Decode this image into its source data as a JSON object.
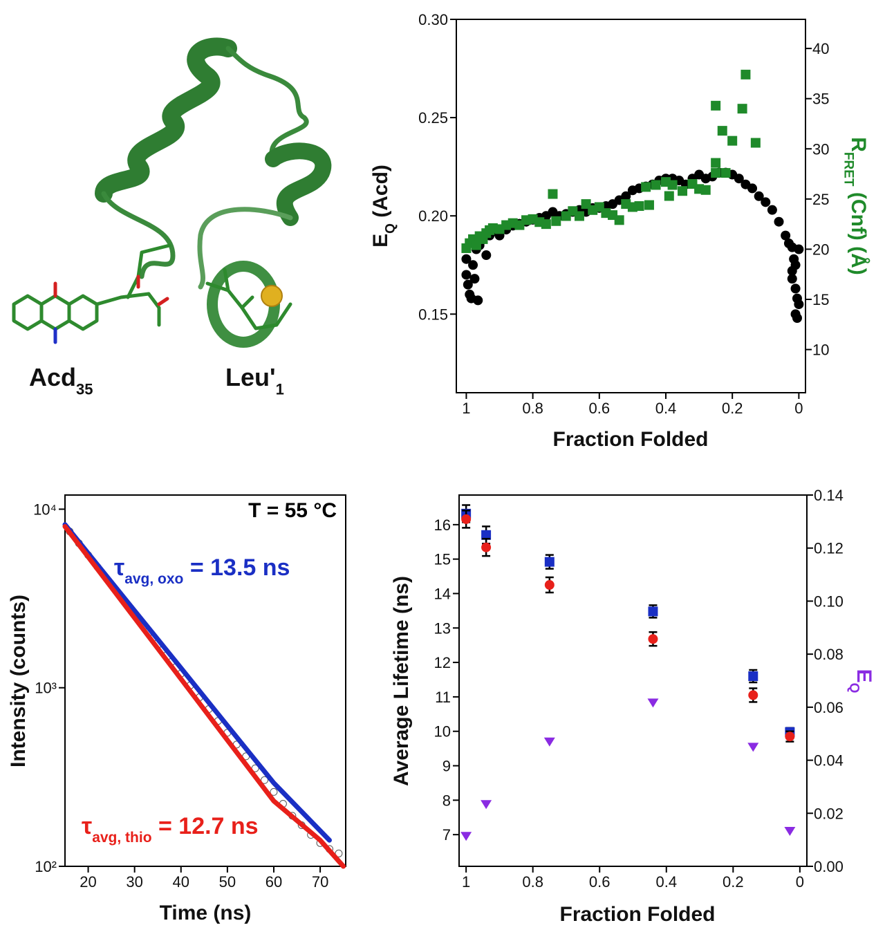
{
  "structure": {
    "labels": [
      [
        "Acd",
        {
          "sub": "35"
        }
      ],
      [
        "Leu'",
        {
          "sub": "1"
        }
      ]
    ]
  },
  "chart_data": [
    {
      "type": "scatter",
      "xlabel": [
        "Fraction Folded"
      ],
      "ylabel": [
        "E",
        {
          "sub": "Q"
        },
        " (Acd)"
      ],
      "y2label": [
        "R",
        {
          "sub": "FRET"
        },
        " (Cnf) (Å)"
      ],
      "y2label_color": "#1f8a2a",
      "xlim": [
        1.03,
        -0.02
      ],
      "xticks": [
        1,
        0.8,
        0.6,
        0.4,
        0.2,
        0
      ],
      "ylim": [
        0.11,
        0.3
      ],
      "yticks": [
        0.15,
        {
          "value": 0.2,
          "label": "0.20"
        },
        0.25,
        {
          "value": 0.3,
          "label": "0.30"
        }
      ],
      "y2lim": [
        5.7,
        42.9
      ],
      "y2ticks": [
        10,
        15,
        20,
        25,
        30,
        35,
        40
      ],
      "series": [
        {
          "color": "#000000",
          "marker": "circle",
          "x": [
            1.0,
            1.0,
            0.995,
            0.99,
            0.985,
            0.98,
            0.975,
            0.97,
            0.965,
            0.96,
            0.95,
            0.94,
            0.93,
            0.92,
            0.9,
            0.88,
            0.86,
            0.84,
            0.82,
            0.8,
            0.78,
            0.76,
            0.74,
            0.72,
            0.7,
            0.68,
            0.66,
            0.64,
            0.62,
            0.6,
            0.58,
            0.56,
            0.54,
            0.52,
            0.5,
            0.48,
            0.46,
            0.44,
            0.42,
            0.4,
            0.38,
            0.36,
            0.34,
            0.32,
            0.3,
            0.28,
            0.26,
            0.24,
            0.22,
            0.2,
            0.18,
            0.16,
            0.14,
            0.12,
            0.1,
            0.08,
            0.06,
            0.04,
            0.03,
            0.02,
            0.015,
            0.01,
            0.02,
            0.01,
            0.005,
            0.0,
            0.005,
            0.01,
            0.0,
            0.02
          ],
          "values": [
            0.178,
            0.17,
            0.165,
            0.16,
            0.158,
            0.175,
            0.168,
            0.183,
            0.157,
            0.185,
            0.188,
            0.18,
            0.19,
            0.192,
            0.19,
            0.193,
            0.195,
            0.196,
            0.197,
            0.198,
            0.199,
            0.2,
            0.202,
            0.2,
            0.201,
            0.202,
            0.203,
            0.202,
            0.204,
            0.204,
            0.205,
            0.206,
            0.208,
            0.21,
            0.213,
            0.214,
            0.215,
            0.216,
            0.218,
            0.219,
            0.219,
            0.218,
            0.216,
            0.219,
            0.221,
            0.219,
            0.22,
            0.222,
            0.222,
            0.221,
            0.219,
            0.216,
            0.214,
            0.21,
            0.207,
            0.203,
            0.197,
            0.19,
            0.186,
            0.184,
            0.178,
            0.175,
            0.168,
            0.163,
            0.158,
            0.155,
            0.148,
            0.15,
            0.183,
            0.172
          ]
        },
        {
          "color": "#1f8a2a",
          "marker": "square",
          "axis": "y2",
          "x": [
            1.0,
            0.99,
            0.98,
            0.97,
            0.96,
            0.95,
            0.94,
            0.93,
            0.92,
            0.9,
            0.88,
            0.86,
            0.84,
            0.82,
            0.8,
            0.78,
            0.76,
            0.74,
            0.73,
            0.7,
            0.68,
            0.66,
            0.64,
            0.62,
            0.6,
            0.58,
            0.56,
            0.54,
            0.52,
            0.5,
            0.48,
            0.46,
            0.45,
            0.43,
            0.4,
            0.39,
            0.38,
            0.35,
            0.32,
            0.3,
            0.28,
            0.25,
            0.23,
            0.2,
            0.16,
            0.17,
            0.13,
            0.25,
            0.25,
            0.22
          ],
          "values": [
            20.1,
            20.6,
            21.0,
            20.4,
            21.3,
            21.0,
            21.6,
            21.9,
            22.1,
            22.0,
            22.4,
            22.6,
            22.4,
            22.9,
            23.0,
            22.7,
            22.5,
            25.5,
            22.8,
            23.3,
            23.8,
            23.3,
            24.5,
            23.9,
            24.2,
            23.6,
            23.4,
            22.9,
            24.5,
            24.2,
            24.3,
            26.2,
            24.4,
            26.4,
            26.7,
            25.3,
            26.4,
            25.8,
            26.5,
            26.0,
            25.9,
            34.3,
            31.8,
            30.8,
            37.4,
            34.0,
            30.6,
            28.6,
            27.6,
            27.6
          ]
        }
      ]
    },
    {
      "type": "line",
      "xlabel": [
        "Time (ns)"
      ],
      "ylabel": [
        "Intensity (counts)"
      ],
      "xlim": [
        15,
        75.5
      ],
      "xticks": [
        20,
        30,
        40,
        50,
        60,
        70
      ],
      "ylog": true,
      "ylim": [
        100,
        12000
      ],
      "yticks": [
        {
          "value": 100,
          "label": "10²"
        },
        {
          "value": 1000,
          "label": "10³"
        },
        {
          "value": 10000,
          "label": "10⁴"
        }
      ],
      "annotations": [
        {
          "parts": [
            "T = 55 °C"
          ],
          "color": "#000000"
        },
        {
          "parts": [
            "τ",
            {
              "sub": "avg, oxo"
            },
            " = 13.5 ns"
          ],
          "color": "#1a2fc4"
        },
        {
          "parts": [
            "τ",
            {
              "sub": "avg, thio"
            },
            " = 12.7 ns"
          ],
          "color": "#e8201a"
        }
      ],
      "series": [
        {
          "color": "#555555",
          "marker": "open-circle",
          "x": [
            16,
            18,
            20,
            22,
            24,
            26,
            28,
            30,
            32,
            34,
            36,
            38,
            40,
            42,
            44,
            46,
            48,
            50,
            52,
            54,
            56,
            58,
            60,
            62,
            64,
            66,
            68,
            70,
            72,
            74
          ],
          "values": [
            7505,
            6442,
            5530,
            4747,
            4075,
            3498,
            3003,
            2578,
            2213,
            1899,
            1630,
            1400,
            1201,
            1031,
            885,
            760,
            652,
            560,
            481,
            413,
            354,
            304,
            261,
            224,
            192,
            170,
            150,
            135,
            125,
            118
          ]
        },
        {
          "color": "#1a2fc4",
          "x": [
            15,
            20,
            30,
            40,
            50,
            60,
            72
          ],
          "values": [
            8200,
            5660,
            2700,
            1290,
            613,
            293,
            140
          ]
        },
        {
          "color": "#e8201a",
          "x": [
            15,
            20,
            30,
            40,
            50,
            60,
            70,
            75
          ],
          "values": [
            8000,
            5400,
            2460,
            1120,
            509,
            232,
            140,
            100
          ]
        }
      ]
    },
    {
      "type": "scatter",
      "xlabel": [
        "Fraction Folded"
      ],
      "ylabel": [
        "Average Lifetime (ns)"
      ],
      "y2label": [
        "E",
        {
          "sub": "Q"
        }
      ],
      "y2label_color": "#8a2be2",
      "xlim": [
        1.021,
        -0.021
      ],
      "xticks": [
        1,
        0.8,
        0.6,
        0.4,
        0.2,
        0
      ],
      "ylim": [
        6.08,
        16.86
      ],
      "yticks": [
        7,
        8,
        9,
        10,
        11,
        12,
        13,
        14,
        15,
        16
      ],
      "y2lim": [
        0,
        0.14
      ],
      "y2ticks": [
        {
          "value": 0,
          "label": "0.00"
        },
        0.02,
        0.04,
        0.06,
        0.08,
        {
          "value": 0.1,
          "label": "0.10"
        },
        0.12,
        0.14
      ],
      "series": [
        {
          "color": "#1a2fc4",
          "marker": "square",
          "x": [
            1.0,
            0.94,
            0.75,
            0.44,
            0.14,
            0.03
          ],
          "values": [
            16.32,
            15.7,
            14.92,
            13.48,
            11.6,
            9.98
          ],
          "errors": [
            0.25,
            0.25,
            0.2,
            0.18,
            0.18,
            0.12
          ]
        },
        {
          "color": "#e8201a",
          "marker": "circle",
          "x": [
            1.0,
            0.94,
            0.75,
            0.44,
            0.14,
            0.03
          ],
          "values": [
            16.16,
            15.34,
            14.25,
            12.68,
            11.05,
            9.85
          ],
          "errors": [
            0.25,
            0.25,
            0.22,
            0.2,
            0.2,
            0.15
          ]
        },
        {
          "color": "#8a2be2",
          "marker": "triangle-down",
          "axis": "y2",
          "x": [
            1.0,
            0.94,
            0.75,
            0.44,
            0.14,
            0.03
          ],
          "values": [
            0.0114,
            0.0234,
            0.047,
            0.0617,
            0.045,
            0.0133
          ]
        }
      ]
    }
  ]
}
